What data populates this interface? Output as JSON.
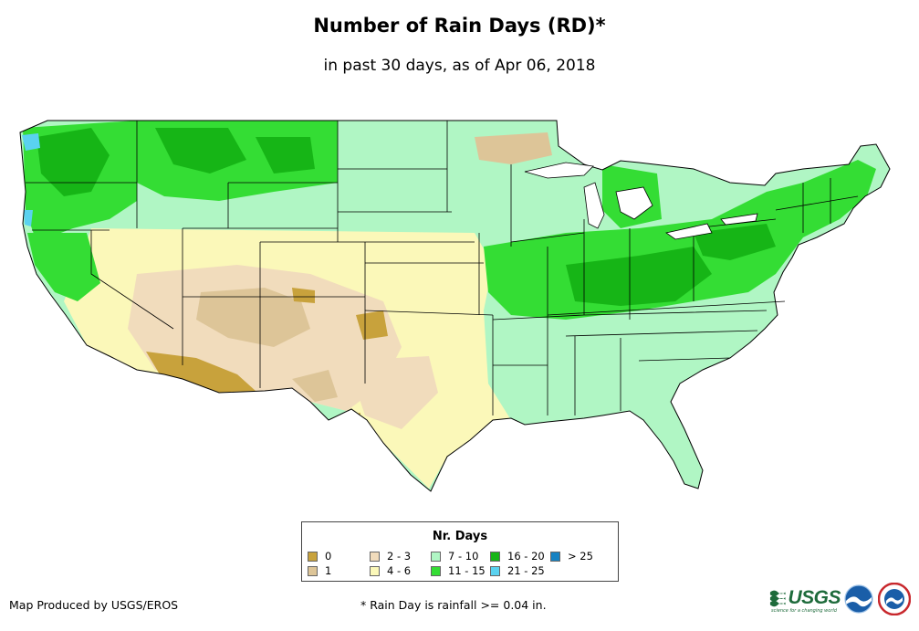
{
  "title": "Number of Rain Days (RD)*",
  "subtitle": "in past 30 days, as of Apr 06, 2018",
  "legend": {
    "title": "Nr. Days",
    "items": [
      {
        "label": "0",
        "color": "#c8a23c"
      },
      {
        "label": "1",
        "color": "#ddc598"
      },
      {
        "label": "2 - 3",
        "color": "#f1dcbc"
      },
      {
        "label": "4 - 6",
        "color": "#fbf8b9"
      },
      {
        "label": "7 - 10",
        "color": "#b0f6c4"
      },
      {
        "label": "11 - 15",
        "color": "#34dd34"
      },
      {
        "label": "16 - 20",
        "color": "#16b516"
      },
      {
        "label": "21 - 25",
        "color": "#5ad2f0"
      },
      {
        "label": "> 25",
        "color": "#1682c2"
      }
    ]
  },
  "produced_by": "Map Produced by USGS/EROS",
  "footnote": "* Rain Day is rainfall >= 0.04 in.",
  "logos": {
    "usgs_text": "USGS",
    "usgs_tagline": "science for a changing world",
    "noaa_text": "noaa"
  }
}
